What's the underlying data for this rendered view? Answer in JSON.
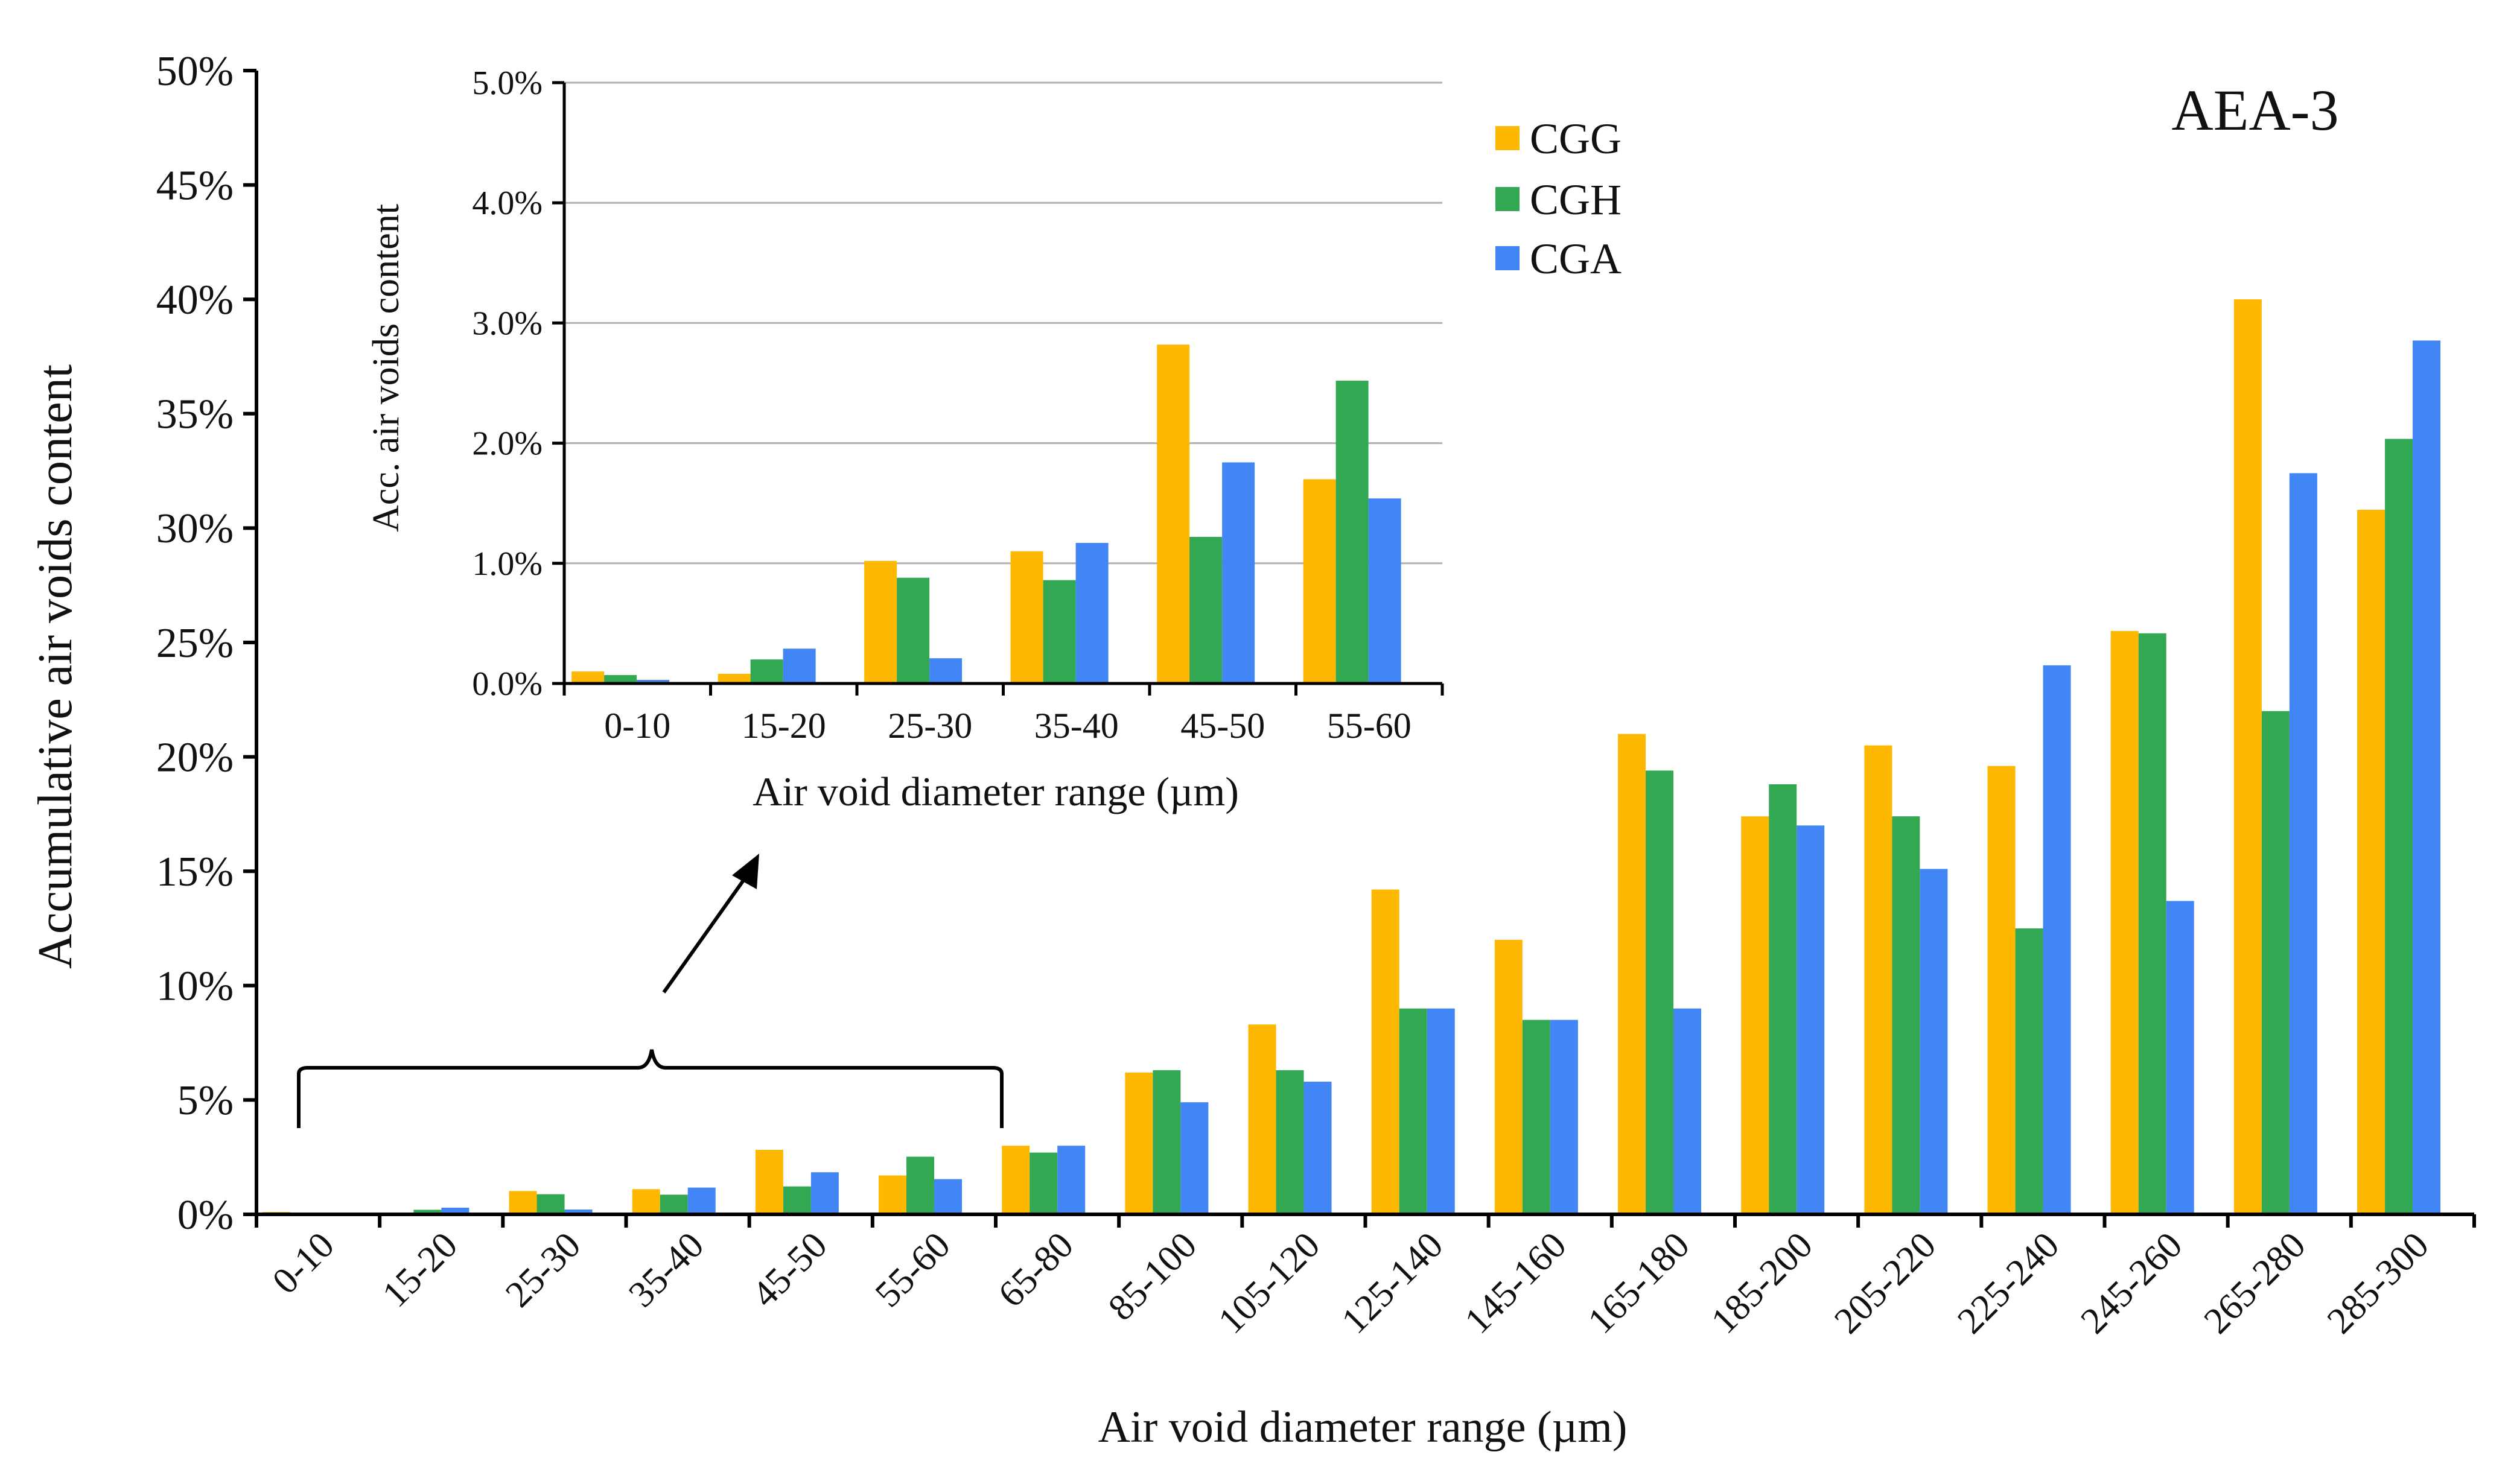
{
  "chart_data": [
    {
      "id": "main",
      "type": "bar",
      "title": "AEA-3",
      "xlabel": "Air void diameter range  (µm)",
      "ylabel": "Accumulative air voids content",
      "ylim": [
        0,
        50
      ],
      "yticks": [
        0,
        5,
        10,
        15,
        20,
        25,
        30,
        35,
        40,
        45,
        50
      ],
      "ytick_labels": [
        "0%",
        "5%",
        "10%",
        "15%",
        "20%",
        "25%",
        "30%",
        "35%",
        "40%",
        "45%",
        "50%"
      ],
      "grid": false,
      "categories": [
        "0-10",
        "15-20",
        "25-30",
        "35-40",
        "45-50",
        "55-60",
        "65-80",
        "85-100",
        "105-120",
        "125-140",
        "145-160",
        "165-180",
        "185-200",
        "205-220",
        "225-240",
        "245-260",
        "265-280",
        "285-300"
      ],
      "series": [
        {
          "name": "CGG",
          "values": [
            0.1,
            0.08,
            1.02,
            1.1,
            2.82,
            1.7,
            3.0,
            6.2,
            8.3,
            14.2,
            12.0,
            21.0,
            17.4,
            20.5,
            19.6,
            25.5,
            40.0,
            30.8
          ]
        },
        {
          "name": "CGH",
          "values": [
            0.07,
            0.2,
            0.88,
            0.86,
            1.22,
            2.52,
            2.7,
            6.3,
            6.3,
            9.0,
            8.5,
            19.4,
            18.8,
            17.4,
            12.5,
            25.4,
            22.0,
            33.9
          ]
        },
        {
          "name": "CGA",
          "values": [
            0.03,
            0.29,
            0.21,
            1.17,
            1.84,
            1.54,
            3.0,
            4.9,
            5.8,
            9.0,
            8.5,
            9.0,
            17.0,
            15.1,
            24.0,
            13.7,
            32.4,
            38.2
          ]
        }
      ]
    },
    {
      "id": "inset",
      "type": "bar",
      "xlabel": "Air void diameter range  (µm)",
      "ylabel": "Acc. air voids content",
      "ylim": [
        0,
        5
      ],
      "yticks": [
        0,
        1,
        2,
        3,
        4,
        5
      ],
      "ytick_labels": [
        "0.0%",
        "1.0%",
        "2.0%",
        "3.0%",
        "4.0%",
        "5.0%"
      ],
      "grid": true,
      "categories": [
        "0-10",
        "15-20",
        "25-30",
        "35-40",
        "45-50",
        "55-60"
      ],
      "series": [
        {
          "name": "CGG",
          "values": [
            0.1,
            0.08,
            1.02,
            1.1,
            2.82,
            1.7
          ]
        },
        {
          "name": "CGH",
          "values": [
            0.07,
            0.2,
            0.88,
            0.86,
            1.22,
            2.52
          ]
        },
        {
          "name": "CGA",
          "values": [
            0.03,
            0.29,
            0.21,
            1.17,
            1.84,
            1.54
          ]
        }
      ]
    }
  ],
  "legend": {
    "position": "top-center",
    "items": [
      {
        "label": "CGG",
        "color": "#FFB800"
      },
      {
        "label": "CGH",
        "color": "#33A852"
      },
      {
        "label": "CGA",
        "color": "#4285F4"
      }
    ]
  }
}
